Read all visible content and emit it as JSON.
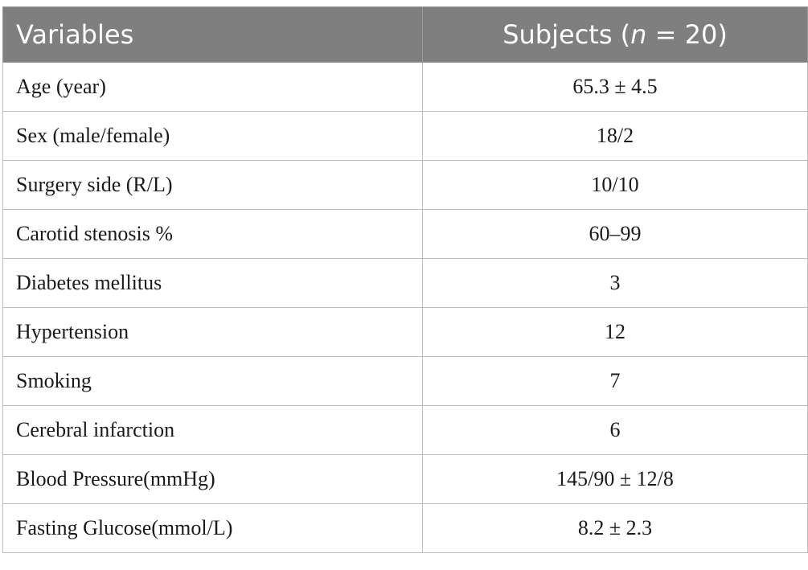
{
  "table": {
    "header": {
      "variables": "Variables",
      "subjects_prefix": "Subjects (",
      "subjects_n": "n",
      "subjects_suffix": " = 20)"
    },
    "rows": [
      {
        "variable": "Age (year)",
        "value": "65.3 ± 4.5"
      },
      {
        "variable": "Sex (male/female)",
        "value": "18/2"
      },
      {
        "variable": "Surgery side (R/L)",
        "value": "10/10"
      },
      {
        "variable": "Carotid stenosis %",
        "value": "60–99"
      },
      {
        "variable": "Diabetes mellitus",
        "value": "3"
      },
      {
        "variable": "Hypertension",
        "value": "12"
      },
      {
        "variable": "Smoking",
        "value": "7"
      },
      {
        "variable": "Cerebral infarction",
        "value": "6"
      },
      {
        "variable": "Blood Pressure(mmHg)",
        "value": "145/90 ± 12/8"
      },
      {
        "variable": "Fasting Glucose(mmol/L)",
        "value": "8.2 ± 2.3"
      }
    ]
  }
}
